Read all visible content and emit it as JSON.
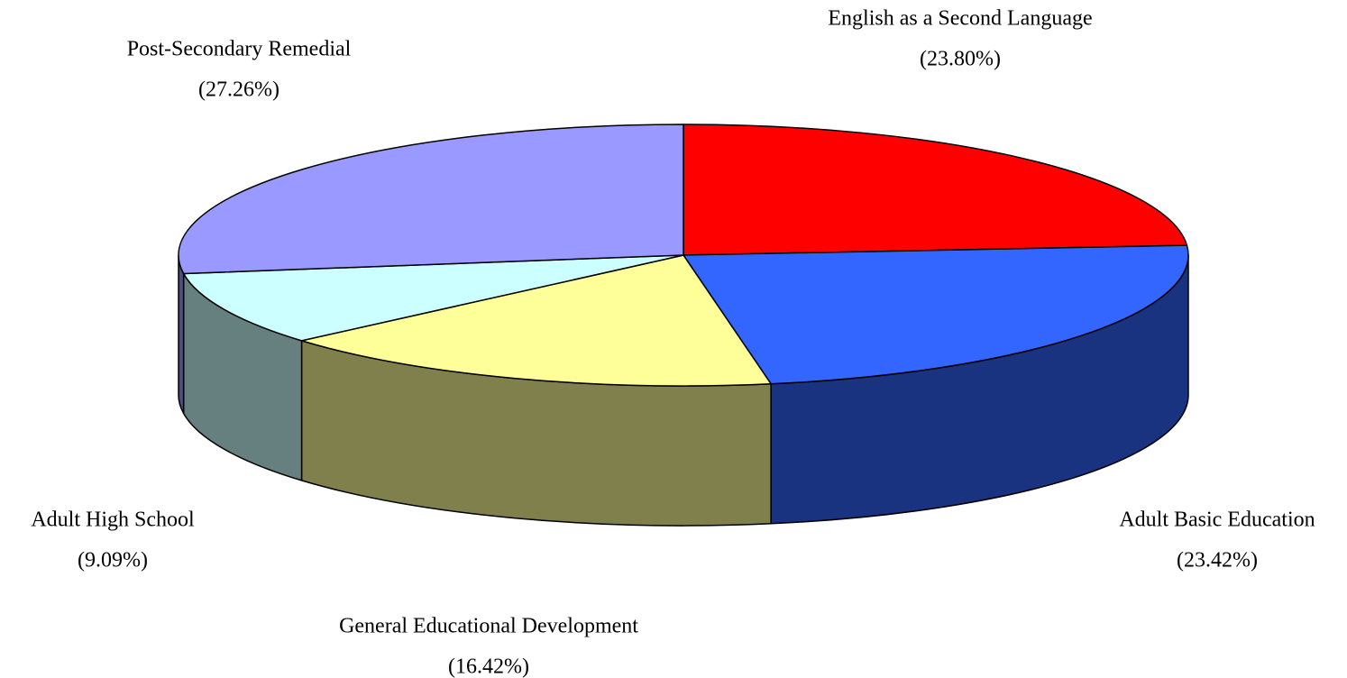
{
  "chart_data": {
    "type": "pie",
    "categories": [
      "English as a Second Language",
      "Adult Basic Education",
      "General Educational Development",
      "Adult High School",
      "Post-Secondary Remedial"
    ],
    "values": [
      23.8,
      23.42,
      16.42,
      9.09,
      27.26
    ],
    "value_labels": [
      "(23.80%)",
      "(23.42%)",
      "(16.42%)",
      "(9.09%)",
      "(27.26%)"
    ],
    "colors": [
      "#ff0000",
      "#3366ff",
      "#ffff99",
      "#ccffff",
      "#9999ff"
    ]
  }
}
